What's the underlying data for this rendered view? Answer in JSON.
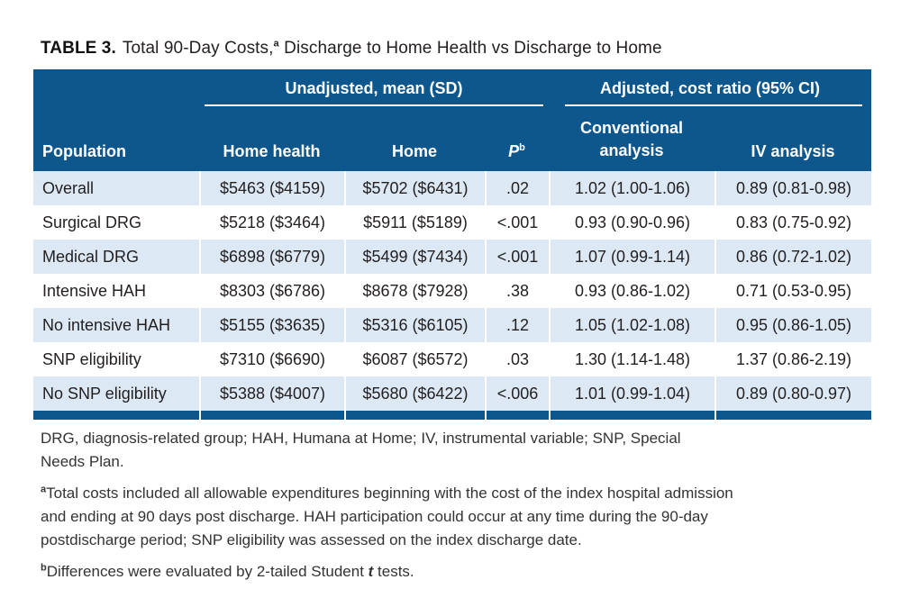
{
  "caption": {
    "label": "TABLE 3.",
    "title_pre": "Total 90-Day Costs,",
    "title_sup": "a",
    "title_post": " Discharge to Home Health vs Discharge to Home"
  },
  "header": {
    "group_unadjusted": "Unadjusted, mean (SD)",
    "group_adjusted": "Adjusted, cost ratio (95% CI)",
    "col_population": "Population",
    "col_home_health": "Home health",
    "col_home": "Home",
    "col_p": "P",
    "col_p_sup": "b",
    "col_conventional": "Conventional analysis",
    "col_iv": "IV analysis"
  },
  "rows": [
    {
      "population": "Overall",
      "home_health": "$5463 ($4159)",
      "home": "$5702 ($6431)",
      "p": ".02",
      "conventional": "1.02 (1.00-1.06)",
      "iv": "0.89 (0.81-0.98)"
    },
    {
      "population": "Surgical DRG",
      "home_health": "$5218 ($3464)",
      "home": "$5911 ($5189)",
      "p": "<.001",
      "conventional": "0.93 (0.90-0.96)",
      "iv": "0.83 (0.75-0.92)"
    },
    {
      "population": "Medical DRG",
      "home_health": "$6898 ($6779)",
      "home": "$5499 ($7434)",
      "p": "<.001",
      "conventional": "1.07 (0.99-1.14)",
      "iv": "0.86 (0.72-1.02)"
    },
    {
      "population": "Intensive HAH",
      "home_health": "$8303 ($6786)",
      "home": "$8678 ($7928)",
      "p": ".38",
      "conventional": "0.93 (0.86-1.02)",
      "iv": "0.71 (0.53-0.95)"
    },
    {
      "population": "No intensive HAH",
      "home_health": "$5155 ($3635)",
      "home": "$5316 ($6105)",
      "p": ".12",
      "conventional": "1.05 (1.02-1.08)",
      "iv": "0.95 (0.86-1.05)"
    },
    {
      "population": "SNP eligibility",
      "home_health": "$7310 ($6690)",
      "home": "$6087 ($6572)",
      "p": ".03",
      "conventional": "1.30 (1.14-1.48)",
      "iv": "1.37 (0.86-2.19)"
    },
    {
      "population": "No SNP eligibility",
      "home_health": "$5388 ($4007)",
      "home": "$5680 ($6422)",
      "p": "<.006",
      "conventional": "1.01 (0.99-1.04)",
      "iv": "0.89 (0.80-0.97)"
    }
  ],
  "footnotes": {
    "abbrev_line1": "DRG, diagnosis-related group; HAH, Humana at Home; IV, instrumental variable; SNP, Special",
    "abbrev_line2": "Needs Plan.",
    "a_sup": "a",
    "a_line1": "Total costs included all allowable expenditures beginning with the cost of the index hospital admission",
    "a_line2": "and ending at 90 days post discharge. HAH participation could occur at any time during the 90-day",
    "a_line3": "postdischarge period; SNP eligibility was assessed on the index discharge date.",
    "b_sup": "b",
    "b_pre": "Differences were evaluated by 2-tailed Student ",
    "b_italic": "t",
    "b_post": " tests."
  },
  "colors": {
    "header_bg": "#0E578D",
    "alt_row_bg": "#DCE9F4",
    "rule_white": "#FFFFFF",
    "body_text": "#231F20"
  }
}
